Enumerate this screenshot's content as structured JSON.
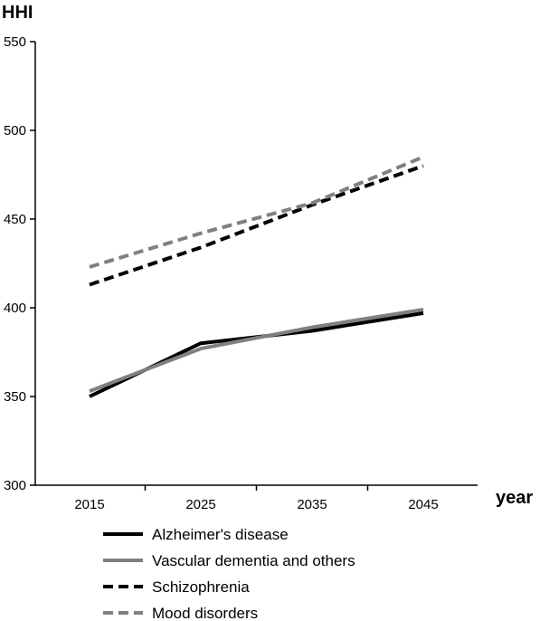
{
  "chart_data": {
    "type": "line",
    "ylabel": "HHI",
    "xlabel": "year",
    "categories": [
      "2015",
      "2025",
      "2035",
      "2045"
    ],
    "x": [
      2015,
      2025,
      2035,
      2045
    ],
    "ylim": [
      300,
      550
    ],
    "yticks": [
      300,
      350,
      400,
      450,
      500,
      550
    ],
    "grid": false,
    "legend_position": "bottom",
    "series": [
      {
        "name": "Alzheimer's disease",
        "values": [
          350,
          380,
          387,
          397
        ],
        "color": "#000000",
        "dashed": false
      },
      {
        "name": "Vascular dementia and others",
        "values": [
          353,
          377,
          389,
          399
        ],
        "color": "#808080",
        "dashed": false
      },
      {
        "name": "Schizophrenia",
        "values": [
          413,
          434,
          458,
          480
        ],
        "color": "#000000",
        "dashed": true
      },
      {
        "name": "Mood disorders",
        "values": [
          423,
          442,
          459,
          485
        ],
        "color": "#808080",
        "dashed": true
      }
    ]
  }
}
